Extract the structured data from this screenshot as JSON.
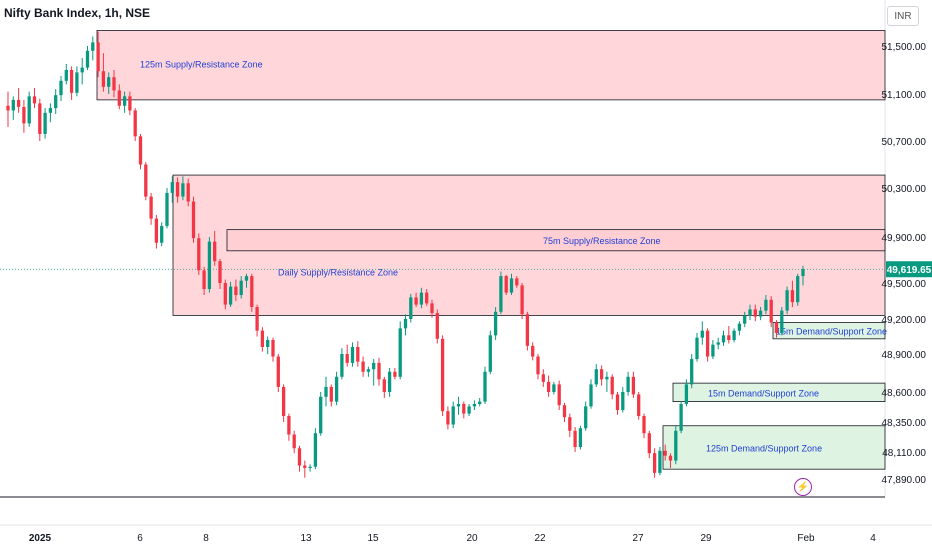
{
  "header": {
    "symbol_title": "Nifty Bank Index, 1h, NSE",
    "currency": "INR"
  },
  "chart_data": {
    "type": "candlestick",
    "y_axis": {
      "ticks": [
        51500,
        51100,
        50700,
        50300,
        49900,
        49500,
        49200,
        48900,
        48600,
        48350,
        48110,
        47890
      ],
      "tick_labels": [
        "51,500.00",
        "51,100.00",
        "50,700.00",
        "50,300.00",
        "49,900.00",
        "49,500.00",
        "49,200.00",
        "48,900.00",
        "48,600.00",
        "48,350.00",
        "48,110.00",
        "47,890.00"
      ]
    },
    "x_axis": {
      "tick_labels": [
        "2025",
        "6",
        "8",
        "13",
        "15",
        "20",
        "22",
        "27",
        "29",
        "Feb",
        "4"
      ]
    },
    "current_price": {
      "value": 49619.65,
      "label": "49,619.65"
    },
    "zones": [
      {
        "label": "125m Supply/Resistance Zone",
        "top": 51630,
        "bottom": 51050,
        "kind": "supply"
      },
      {
        "label": "Daily Supply/Resistance Zone",
        "top": 50410,
        "bottom": 49230,
        "kind": "supply"
      },
      {
        "label": "75m Supply/Resistance Zone",
        "top": 49960,
        "bottom": 49780,
        "kind": "supply"
      },
      {
        "label": "15m Demand/Support Zone",
        "top": 49170,
        "bottom": 49030,
        "kind": "demand"
      },
      {
        "label": "15m Demand/Support Zone",
        "top": 48670,
        "bottom": 48520,
        "kind": "demand"
      },
      {
        "label": "125m Demand/Support Zone",
        "top": 48320,
        "bottom": 47970,
        "kind": "demand"
      }
    ],
    "colors": {
      "up": "#089981",
      "down": "#f23645",
      "supply_fill": "#ffcdd2",
      "demand_fill": "#d6f0d9",
      "price_tag": "#089981"
    },
    "candles": [
      [
        51000,
        51120,
        50820,
        50960
      ],
      [
        50960,
        51080,
        50880,
        51050
      ],
      [
        51050,
        51150,
        50940,
        50990
      ],
      [
        50990,
        51050,
        50770,
        50850
      ],
      [
        50850,
        51120,
        50820,
        51080
      ],
      [
        51080,
        51150,
        50980,
        51020
      ],
      [
        51020,
        51060,
        50700,
        50760
      ],
      [
        50760,
        50980,
        50720,
        50940
      ],
      [
        50940,
        51020,
        50860,
        50980
      ],
      [
        50980,
        51140,
        50930,
        51090
      ],
      [
        51090,
        51250,
        51040,
        51210
      ],
      [
        51210,
        51350,
        51180,
        51300
      ],
      [
        51300,
        51330,
        51050,
        51110
      ],
      [
        51110,
        51330,
        51080,
        51280
      ],
      [
        51280,
        51400,
        51180,
        51320
      ],
      [
        51320,
        51500,
        51300,
        51460
      ],
      [
        51460,
        51580,
        51380,
        51530
      ],
      [
        51530,
        51620,
        51240,
        51290
      ],
      [
        51290,
        51440,
        51120,
        51160
      ],
      [
        51160,
        51280,
        51100,
        51240
      ],
      [
        51240,
        51300,
        51070,
        51130
      ],
      [
        51130,
        51180,
        50970,
        51000
      ],
      [
        51000,
        51120,
        50940,
        51080
      ],
      [
        51080,
        51120,
        50920,
        50960
      ],
      [
        50960,
        50980,
        50700,
        50740
      ],
      [
        50740,
        50760,
        50460,
        50500
      ],
      [
        50500,
        50520,
        50200,
        50230
      ],
      [
        50230,
        50260,
        50000,
        50050
      ],
      [
        50050,
        50080,
        49800,
        49850
      ],
      [
        49850,
        50020,
        49820,
        49990
      ],
      [
        49990,
        50300,
        49970,
        50260
      ],
      [
        50260,
        50400,
        50180,
        50350
      ],
      [
        50350,
        50390,
        50180,
        50230
      ],
      [
        50230,
        50400,
        50200,
        50340
      ],
      [
        50340,
        50380,
        50150,
        50190
      ],
      [
        50190,
        50230,
        49850,
        49890
      ],
      [
        49890,
        49930,
        49570,
        49610
      ],
      [
        49610,
        49640,
        49400,
        49450
      ],
      [
        49450,
        49900,
        49420,
        49860
      ],
      [
        49860,
        49950,
        49650,
        49690
      ],
      [
        49690,
        49710,
        49450,
        49500
      ],
      [
        49500,
        49530,
        49280,
        49320
      ],
      [
        49320,
        49510,
        49300,
        49470
      ],
      [
        49470,
        49530,
        49350,
        49400
      ],
      [
        49400,
        49560,
        49370,
        49520
      ],
      [
        49520,
        49580,
        49460,
        49560
      ],
      [
        49560,
        49580,
        49260,
        49300
      ],
      [
        49300,
        49320,
        49050,
        49100
      ],
      [
        49100,
        49130,
        48920,
        48960
      ],
      [
        48960,
        49050,
        48900,
        49020
      ],
      [
        49020,
        49040,
        48840,
        48880
      ],
      [
        48880,
        48900,
        48600,
        48640
      ],
      [
        48640,
        48660,
        48350,
        48400
      ],
      [
        48400,
        48420,
        48200,
        48250
      ],
      [
        48250,
        48280,
        48100,
        48140
      ],
      [
        48140,
        48160,
        47950,
        48000
      ],
      [
        48000,
        48040,
        47900,
        47980
      ],
      [
        47980,
        48010,
        47950,
        47990
      ],
      [
        47990,
        48300,
        47970,
        48260
      ],
      [
        48260,
        48600,
        48240,
        48560
      ],
      [
        48560,
        48720,
        48480,
        48640
      ],
      [
        48640,
        48660,
        48480,
        48520
      ],
      [
        48520,
        48760,
        48490,
        48720
      ],
      [
        48720,
        48950,
        48700,
        48900
      ],
      [
        48900,
        48980,
        48800,
        48830
      ],
      [
        48830,
        49000,
        48800,
        48960
      ],
      [
        48960,
        49010,
        48800,
        48840
      ],
      [
        48840,
        48880,
        48720,
        48760
      ],
      [
        48760,
        48800,
        48720,
        48780
      ],
      [
        48780,
        48860,
        48650,
        48830
      ],
      [
        48830,
        48870,
        48650,
        48700
      ],
      [
        48700,
        48720,
        48550,
        48600
      ],
      [
        48600,
        48790,
        48560,
        48760
      ],
      [
        48760,
        48790,
        48700,
        48720
      ],
      [
        48720,
        49180,
        48700,
        49120
      ],
      [
        49120,
        49240,
        49060,
        49200
      ],
      [
        49200,
        49410,
        49170,
        49380
      ],
      [
        49380,
        49420,
        49300,
        49320
      ],
      [
        49320,
        49460,
        49290,
        49420
      ],
      [
        49420,
        49450,
        49310,
        49330
      ],
      [
        49330,
        49360,
        49210,
        49250
      ],
      [
        49250,
        49280,
        48990,
        49030
      ],
      [
        49030,
        49060,
        48400,
        48440
      ],
      [
        48440,
        48480,
        48290,
        48330
      ],
      [
        48330,
        48520,
        48300,
        48480
      ],
      [
        48480,
        48560,
        48410,
        48500
      ],
      [
        48500,
        48520,
        48380,
        48420
      ],
      [
        48420,
        48500,
        48400,
        48480
      ],
      [
        48480,
        48530,
        48450,
        48500
      ],
      [
        48500,
        48550,
        48480,
        48520
      ],
      [
        48520,
        48800,
        48500,
        48760
      ],
      [
        48760,
        49100,
        48740,
        49060
      ],
      [
        49060,
        49300,
        49020,
        49260
      ],
      [
        49260,
        49600,
        49240,
        49560
      ],
      [
        49560,
        49570,
        49400,
        49420
      ],
      [
        49420,
        49580,
        49400,
        49540
      ],
      [
        49540,
        49560,
        49460,
        49480
      ],
      [
        49480,
        49500,
        49200,
        49240
      ],
      [
        49240,
        49260,
        48930,
        48970
      ],
      [
        48970,
        49000,
        48850,
        48880
      ],
      [
        48880,
        48900,
        48700,
        48740
      ],
      [
        48740,
        48780,
        48640,
        48680
      ],
      [
        48680,
        48730,
        48560,
        48600
      ],
      [
        48600,
        48680,
        48580,
        48660
      ],
      [
        48660,
        48690,
        48450,
        48490
      ],
      [
        48490,
        48510,
        48350,
        48390
      ],
      [
        48390,
        48420,
        48230,
        48280
      ],
      [
        48280,
        48310,
        48110,
        48150
      ],
      [
        48150,
        48320,
        48130,
        48300
      ],
      [
        48300,
        48520,
        48280,
        48480
      ],
      [
        48480,
        48700,
        48460,
        48660
      ],
      [
        48660,
        48820,
        48640,
        48780
      ],
      [
        48780,
        48810,
        48650,
        48700
      ],
      [
        48700,
        48760,
        48600,
        48720
      ],
      [
        48720,
        48740,
        48540,
        48580
      ],
      [
        48580,
        48600,
        48410,
        48450
      ],
      [
        48450,
        48640,
        48430,
        48600
      ],
      [
        48600,
        48760,
        48570,
        48720
      ],
      [
        48720,
        48760,
        48550,
        48580
      ],
      [
        48580,
        48600,
        48370,
        48400
      ],
      [
        48400,
        48420,
        48220,
        48260
      ],
      [
        48260,
        48280,
        48060,
        48100
      ],
      [
        48100,
        48140,
        47900,
        47940
      ],
      [
        47940,
        48150,
        47920,
        48120
      ],
      [
        48120,
        48170,
        48040,
        48080
      ],
      [
        48080,
        48100,
        47980,
        48040
      ],
      [
        48040,
        48320,
        48010,
        48280
      ],
      [
        48280,
        48520,
        48260,
        48500
      ],
      [
        48500,
        48700,
        48480,
        48660
      ],
      [
        48660,
        48900,
        48630,
        48860
      ],
      [
        48860,
        49080,
        48840,
        49040
      ],
      [
        49040,
        49180,
        48980,
        49100
      ],
      [
        49100,
        49120,
        48840,
        48880
      ],
      [
        48880,
        49020,
        48860,
        48980
      ],
      [
        48980,
        49040,
        48940,
        49000
      ],
      [
        49000,
        49100,
        48970,
        49060
      ],
      [
        49060,
        49140,
        48990,
        49020
      ],
      [
        49020,
        49120,
        49000,
        49100
      ],
      [
        49100,
        49180,
        49060,
        49160
      ],
      [
        49160,
        49260,
        49130,
        49230
      ],
      [
        49230,
        49320,
        49190,
        49280
      ],
      [
        49280,
        49320,
        49180,
        49220
      ],
      [
        49220,
        49300,
        49190,
        49270
      ],
      [
        49270,
        49400,
        49240,
        49360
      ],
      [
        49360,
        49390,
        49130,
        49170
      ],
      [
        49170,
        49190,
        49040,
        49080
      ],
      [
        49080,
        49300,
        49060,
        49270
      ],
      [
        49270,
        49470,
        49240,
        49440
      ],
      [
        49440,
        49520,
        49300,
        49340
      ],
      [
        49340,
        49580,
        49310,
        49560
      ],
      [
        49560,
        49650,
        49480,
        49620
      ]
    ]
  }
}
